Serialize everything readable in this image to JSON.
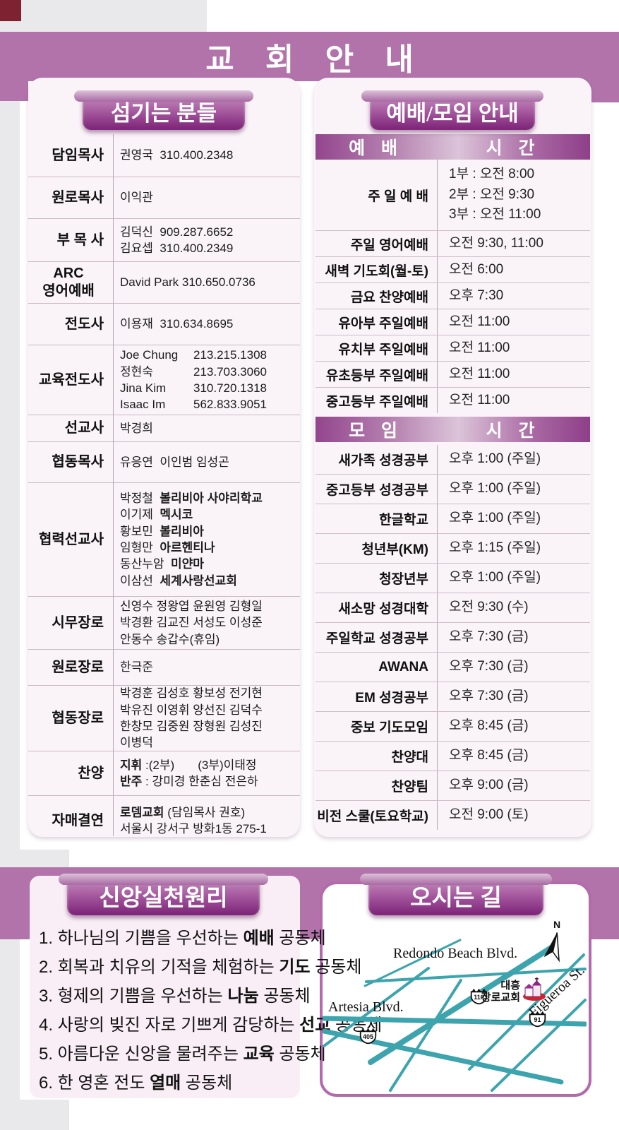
{
  "page": {
    "title": "교 회 안 내"
  },
  "colors": {
    "band_purple": "#b273aa",
    "tab_dark": "#7c2277",
    "card_pink": "#faf3f8",
    "road_teal": "#3da4ae",
    "map_border": "#b469ac",
    "corner_maroon": "#7e2130"
  },
  "left_panel": {
    "tab": "섬기는 분들",
    "rows": [
      {
        "label": "담임목사",
        "lines": [
          {
            "t": "권영국  310.400.2348"
          }
        ]
      },
      {
        "label": "원로목사",
        "lines": [
          {
            "t": "이익관"
          }
        ]
      },
      {
        "label": "부 목 사",
        "lines": [
          {
            "t": "김덕신  909.287.6652"
          },
          {
            "t": "김요셉  310.400.2349"
          }
        ]
      },
      {
        "label": "ARC\n영어예배",
        "lines": [
          {
            "t": "David Park 310.650.0736"
          }
        ]
      },
      {
        "label": "전도사",
        "lines": [
          {
            "t": "이용재  310.634.8695"
          }
        ]
      },
      {
        "label": "교육전도사",
        "lines": [
          {
            "n": "Joe Chung",
            "p": "213.215.1308"
          },
          {
            "n": "정현숙",
            "p": "213.703.3060"
          },
          {
            "n": "Jina Kim",
            "p": "310.720.1318"
          },
          {
            "n": "Isaac Im",
            "p": "562.833.9051"
          }
        ]
      },
      {
        "label": "선교사",
        "lines": [
          {
            "t": "박경희"
          }
        ]
      },
      {
        "label": "협동목사",
        "lines": [
          {
            "t": "유응연  이인범 임성곤"
          }
        ]
      },
      {
        "label": "협력선교사",
        "lines": [
          {
            "t": "박정철  ",
            "b2": "볼리비아 사야리학교"
          },
          {
            "t": "이기제  ",
            "b2": "멕시코"
          },
          {
            "t": "황보민  ",
            "b2": "볼리비아"
          },
          {
            "t": "임형만  ",
            "b2": "아르헨티나"
          },
          {
            "t": "동산누암  ",
            "b2": "미얀마"
          },
          {
            "t": "이삼선  ",
            "b2": "세계사랑선교회"
          }
        ]
      },
      {
        "label": "시무장로",
        "lines": [
          {
            "t": "신영수 정왕엽 윤원영 김형일"
          },
          {
            "t": "박경환 김교진 서성도 이성준"
          },
          {
            "t": "안동수 송갑수(휴임)"
          }
        ]
      },
      {
        "label": "원로장로",
        "lines": [
          {
            "t": "한극준"
          }
        ]
      },
      {
        "label": "협동장로",
        "lines": [
          {
            "t": "박경훈 김성호 황보성 전기현"
          },
          {
            "t": "박유진 이영휘 양선진 김덕수"
          },
          {
            "t": "한창모 김중원 장형원 김성진"
          },
          {
            "t": "이병덕"
          }
        ]
      },
      {
        "label": "찬양",
        "lines": [
          {
            "b": "지휘",
            "t": " :(2부)       (3부)이태정"
          },
          {
            "b": "반주",
            "t": " : 강미경 한춘심 전은하"
          }
        ]
      },
      {
        "label": "자매결연",
        "lines": [
          {
            "b": "로뎀교회",
            "t": " (담임목사 권호)"
          },
          {
            "t": "서울시 강서구 방화1동 275-1"
          }
        ]
      }
    ]
  },
  "right_panel": {
    "tab": "예배/모임 안내",
    "worship": {
      "header": [
        "예 배",
        "시 간"
      ],
      "rows": [
        {
          "label": "주 일 예 배",
          "times": [
            "1부 : 오전   8:00",
            "2부 : 오전   9:30",
            "3부 : 오전 11:00"
          ]
        },
        {
          "label": "주일 영어예배",
          "times": [
            "오전 9:30, 11:00"
          ]
        },
        {
          "label": "새벽 기도회(월-토)",
          "times": [
            "오전 6:00"
          ]
        },
        {
          "label": "금요 찬양예배",
          "times": [
            "오후 7:30"
          ]
        },
        {
          "label": "유아부 주일예배",
          "times": [
            "오전 11:00"
          ]
        },
        {
          "label": "유치부 주일예배",
          "times": [
            "오전 11:00"
          ]
        },
        {
          "label": "유초등부 주일예배",
          "times": [
            "오전 11:00"
          ]
        },
        {
          "label": "중고등부 주일예배",
          "times": [
            "오전 11:00"
          ]
        }
      ]
    },
    "meeting": {
      "header": [
        "모 임",
        "시 간"
      ],
      "rows": [
        {
          "label": "새가족 성경공부",
          "times": [
            "오후 1:00 (주일)"
          ]
        },
        {
          "label": "중고등부 성경공부",
          "times": [
            "오후 1:00 (주일)"
          ]
        },
        {
          "label": "한글학교",
          "times": [
            "오후 1:00 (주일)"
          ]
        },
        {
          "label": "청년부(KM)",
          "times": [
            "오후 1:15 (주일)"
          ]
        },
        {
          "label": "청장년부",
          "times": [
            "오후 1:00 (주일)"
          ]
        },
        {
          "label": "새소망 성경대학",
          "times": [
            "오전 9:30 (수)"
          ]
        },
        {
          "label": "주일학교 성경공부",
          "times": [
            "오후 7:30 (금)"
          ]
        },
        {
          "label": "AWANA",
          "times": [
            "오후 7:30 (금)"
          ]
        },
        {
          "label": "EM 성경공부",
          "times": [
            "오후 7:30 (금)"
          ]
        },
        {
          "label": "중보 기도모임",
          "times": [
            "오후 8:45 (금)"
          ]
        },
        {
          "label": "찬양대",
          "times": [
            "오후 8:45 (금)"
          ]
        },
        {
          "label": "찬양팀",
          "times": [
            "오후 9:00 (금)"
          ]
        },
        {
          "label": "비전 스쿨(토요학교)",
          "times": [
            "오전 9:00 (토)"
          ]
        }
      ]
    }
  },
  "principles": {
    "tab": "신앙실천원리",
    "items": [
      {
        "pre": "1. 하나님의 기쁨을 우선하는 ",
        "bold": "예배",
        "post": " 공동체"
      },
      {
        "pre": "2. 회복과 치유의 기적을 체험하는 ",
        "bold": "기도",
        "post": " 공동체"
      },
      {
        "pre": "3. 형제의 기쁨을 우선하는 ",
        "bold": "나눔",
        "post": " 공동체"
      },
      {
        "pre": "4. 사랑의 빚진 자로 기쁘게 감당하는 ",
        "bold": "선교",
        "post": " 공동체"
      },
      {
        "pre": "5. 아름다운 신앙을 물려주는 ",
        "bold": "교육",
        "post": " 공동체"
      },
      {
        "pre": "6. 한 영혼 전도 ",
        "bold": "열매",
        "post": " 공동체"
      }
    ]
  },
  "map": {
    "tab": "오시는 길",
    "compass": "N",
    "streets": [
      "Redondo Beach Blvd.",
      "Artesia Blvd.",
      "Figueroa St."
    ],
    "highways": [
      "110",
      "91",
      "405"
    ],
    "church_line1": "대흥",
    "church_line2": "장로교회"
  }
}
